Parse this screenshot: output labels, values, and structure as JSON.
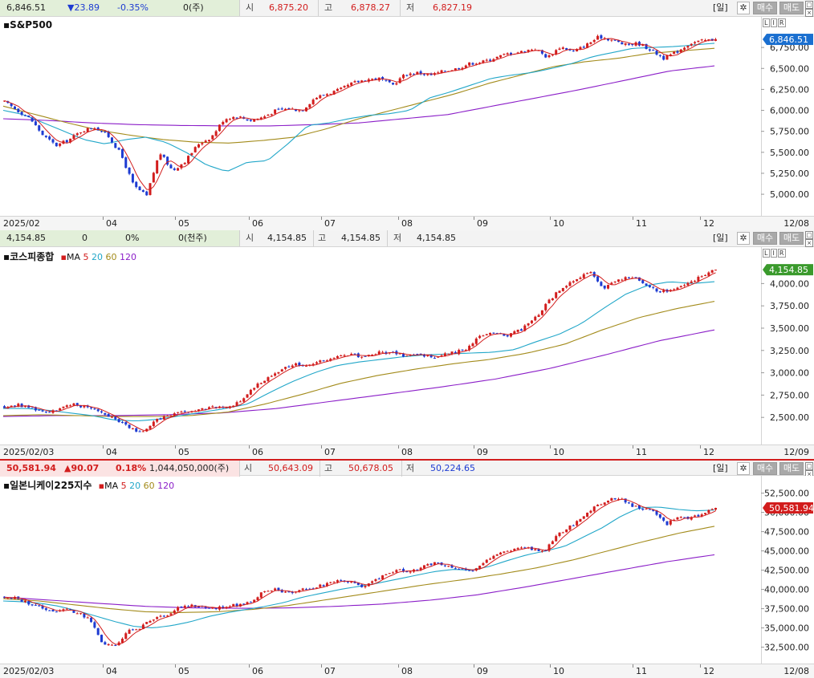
{
  "ui": {
    "period_button": "[일]",
    "gear_glyph": "✲",
    "buy_button": "매수",
    "sell_button": "매도",
    "lir": [
      "L",
      "I",
      "R"
    ]
  },
  "colors": {
    "up": "#d21d1d",
    "down": "#1d3bd2",
    "ma5": "#d21d1d",
    "ma20": "#22a7c9",
    "ma60": "#a38b1b",
    "ma120": "#8b1ec8",
    "badge_sp500": "#1a6fd0",
    "badge_kospi": "#3a9a2c",
    "badge_nikkei": "#d21d1d"
  },
  "chart_data": [
    {
      "type": "candlestick",
      "title": "S&P500",
      "info": {
        "last": "6,846.51",
        "change": "▼23.89",
        "change_pct": "-0.35%",
        "volume": "0(주)",
        "open_label": "시",
        "open": "6,875.20",
        "high_label": "고",
        "high": "6,878.27",
        "low_label": "저",
        "low": "6,827.19"
      },
      "ma_legend": null,
      "last_value": 6846.51,
      "last_label": "6,846.51",
      "ylim": [
        4800,
        7000
      ],
      "y_ticks": [
        6750,
        6500,
        6250,
        6000,
        5750,
        5500,
        5250,
        5000
      ],
      "y_tick_labels": [
        "6,750.00",
        "6,500.00",
        "6,250.00",
        "6,000.00",
        "5,750.00",
        "5,500.00",
        "5,250.00",
        "5,000.00"
      ],
      "x_labels": [
        "2025/02",
        "04",
        "05",
        "06",
        "07",
        "08",
        "09",
        "10",
        "11",
        "12"
      ],
      "end_date": "12/08",
      "close_path": [
        6100,
        6000,
        5900,
        5700,
        5580,
        5650,
        5760,
        5800,
        5700,
        5480,
        5100,
        4980,
        5500,
        5280,
        5400,
        5600,
        5680,
        5900,
        5930,
        5880,
        5920,
        6000,
        6020,
        6000,
        6150,
        6200,
        6250,
        6330,
        6370,
        6380,
        6300,
        6430,
        6450,
        6420,
        6470,
        6500,
        6560,
        6580,
        6630,
        6680,
        6700,
        6740,
        6630,
        6760,
        6700,
        6780,
        6880,
        6840,
        6780,
        6800,
        6720,
        6620,
        6700,
        6800,
        6830,
        6846.51
      ],
      "ma20_path": [
        6000,
        5950,
        5850,
        5750,
        5650,
        5600,
        5650,
        5680,
        5620,
        5500,
        5350,
        5270,
        5380,
        5400,
        5600,
        5820,
        5850,
        5900,
        5940,
        5960,
        6000,
        6150,
        6220,
        6300,
        6380,
        6420,
        6450,
        6500,
        6560,
        6640,
        6690,
        6740,
        6750,
        6760,
        6780,
        6800
      ],
      "ma60_path": [
        6050,
        5950,
        5850,
        5760,
        5700,
        5650,
        5620,
        5610,
        5640,
        5680,
        5780,
        5900,
        6000,
        6100,
        6200,
        6320,
        6420,
        6520,
        6580,
        6620,
        6680,
        6710,
        6740
      ],
      "ma120_path": [
        5900,
        5880,
        5850,
        5830,
        5820,
        5815,
        5815,
        5830,
        5850,
        5900,
        5950,
        6050,
        6150,
        6250,
        6360,
        6470,
        6530
      ]
    },
    {
      "type": "candlestick",
      "title": "코스피종합",
      "info": {
        "last": "4,154.85",
        "change": "0",
        "change_pct": "0%",
        "volume": "0(천주)",
        "open_label": "시",
        "open": "4,154.85",
        "high_label": "고",
        "high": "4,154.85",
        "low_label": "저",
        "low": "4,154.85"
      },
      "ma_legend": {
        "prefix": "MA",
        "periods": [
          "5",
          "20",
          "60",
          "120"
        ]
      },
      "last_value": 4154.85,
      "last_label": "4,154.85",
      "ylim": [
        2250,
        4300
      ],
      "y_ticks": [
        4000,
        3750,
        3500,
        3250,
        3000,
        2750,
        2500
      ],
      "y_tick_labels": [
        "4,000.00",
        "3,750.00",
        "3,500.00",
        "3,250.00",
        "3,000.00",
        "2,750.00",
        "2,500.00"
      ],
      "x_labels": [
        "2025/02/03",
        "04",
        "05",
        "06",
        "07",
        "08",
        "09",
        "10",
        "11",
        "12"
      ],
      "end_date": "12/09",
      "close_path": [
        2620,
        2640,
        2600,
        2560,
        2600,
        2640,
        2620,
        2560,
        2480,
        2380,
        2330,
        2480,
        2530,
        2560,
        2580,
        2620,
        2600,
        2700,
        2850,
        2960,
        3050,
        3100,
        3080,
        3150,
        3180,
        3200,
        3180,
        3230,
        3220,
        3180,
        3200,
        3170,
        3220,
        3260,
        3400,
        3450,
        3420,
        3480,
        3600,
        3800,
        3950,
        4050,
        4120,
        3950,
        4050,
        4080,
        3980,
        3900,
        3950,
        4000,
        4080,
        4154.85
      ],
      "ma20_path": [
        2600,
        2600,
        2580,
        2550,
        2520,
        2470,
        2460,
        2480,
        2520,
        2560,
        2600,
        2650,
        2780,
        2900,
        3000,
        3080,
        3120,
        3150,
        3180,
        3200,
        3210,
        3220,
        3230,
        3260,
        3350,
        3430,
        3550,
        3720,
        3880,
        3980,
        4020,
        4000,
        4020
      ],
      "ma60_path": [
        2520,
        2530,
        2520,
        2510,
        2510,
        2520,
        2560,
        2650,
        2760,
        2880,
        2970,
        3040,
        3100,
        3150,
        3220,
        3320,
        3480,
        3620,
        3720,
        3800
      ],
      "ma120_path": [
        2510,
        2520,
        2520,
        2530,
        2550,
        2600,
        2680,
        2760,
        2840,
        2930,
        3050,
        3200,
        3360,
        3480
      ]
    },
    {
      "type": "candlestick",
      "title": "일본니케이225지수",
      "info": {
        "last": "50,581.94",
        "change": "▲90.07",
        "change_pct": "0.18%",
        "volume": "1,044,050,000(주)",
        "open_label": "시",
        "open": "50,643.09",
        "high_label": "고",
        "high": "50,678.05",
        "low_label": "저",
        "low": "50,224.65"
      },
      "ma_legend": {
        "prefix": "MA",
        "periods": [
          "5",
          "20",
          "60",
          "120"
        ]
      },
      "last_value": 50581.94,
      "last_label": "50,581.94",
      "ylim": [
        31000,
        53500
      ],
      "y_ticks": [
        52500,
        50000,
        47500,
        45000,
        42500,
        40000,
        37500,
        35000,
        32500
      ],
      "y_tick_labels": [
        "52,500.00",
        "50,000.00",
        "47,500.00",
        "45,000.00",
        "42,500.00",
        "40,000.00",
        "37,500.00",
        "35,000.00",
        "32,500.00"
      ],
      "x_labels": [
        "2025/02/03",
        "04",
        "05",
        "06",
        "07",
        "08",
        "09",
        "10",
        "11",
        "12"
      ],
      "end_date": "12/08",
      "close_path": [
        39000,
        38800,
        38200,
        37600,
        37200,
        37400,
        37000,
        36000,
        33000,
        32500,
        34500,
        35000,
        36000,
        36500,
        37500,
        38000,
        37800,
        37500,
        37800,
        38000,
        38400,
        39500,
        40000,
        39500,
        39800,
        40200,
        40500,
        41200,
        41000,
        40400,
        41000,
        42000,
        42500,
        42300,
        42800,
        43500,
        43000,
        42600,
        42300,
        43500,
        44500,
        45000,
        45500,
        45300,
        44800,
        47000,
        48000,
        49000,
        50500,
        51500,
        52000,
        51000,
        50500,
        50000,
        48500,
        49500,
        49200,
        50000,
        50581.94
      ],
      "ma20_path": [
        38500,
        38400,
        38200,
        37800,
        37200,
        36500,
        35800,
        35200,
        35000,
        35300,
        35800,
        36500,
        37000,
        37400,
        37800,
        38300,
        39000,
        39500,
        40000,
        40400,
        40800,
        41300,
        41800,
        42300,
        42600,
        42500,
        43000,
        43800,
        44500,
        45000,
        45600,
        46800,
        48000,
        49500,
        50600,
        50700,
        50400,
        50200,
        50300
      ],
      "ma60_path": [
        38800,
        38500,
        38000,
        37500,
        37100,
        37000,
        37100,
        37400,
        37900,
        38600,
        39300,
        40000,
        40700,
        41300,
        42000,
        42800,
        43800,
        45000,
        46200,
        47300,
        48200
      ],
      "ma120_path": [
        39000,
        38600,
        38200,
        37800,
        37600,
        37550,
        37600,
        37800,
        38100,
        38600,
        39300,
        40300,
        41400,
        42500,
        43600,
        44500
      ]
    }
  ]
}
